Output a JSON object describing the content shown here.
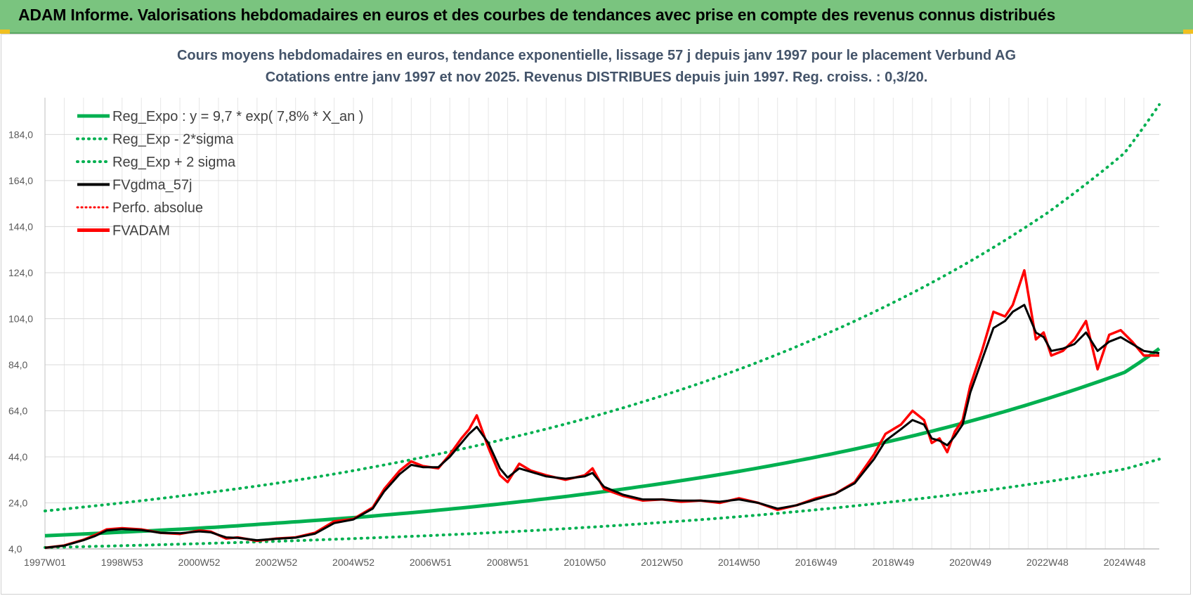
{
  "header": {
    "banner": "ADAM Informe. Valorisations hebdomadaires en euros et des courbes de tendances avec prise en compte des revenus connus distribués"
  },
  "colors": {
    "banner_bg": "#7ac47f",
    "reg_expo": "#00b050",
    "fvgdma": "#000000",
    "fvadam": "#ff0000",
    "perfo": "#ff0000"
  },
  "chart_data": {
    "type": "line",
    "title_lines": [
      "Cours moyens hebdomadaires en euros, tendance exponentielle, lissage 57 j depuis janv 1997  pour le placement Verbund AG",
      "Cotations entre janv 1997 et nov 2025. Revenus DISTRIBUES depuis juin 1997. Reg.  croiss. : 0,3/20."
    ],
    "xlabel": "",
    "ylabel": "",
    "x_range_years": [
      1997.0,
      2025.9
    ],
    "ylim": [
      4,
      200
    ],
    "y_ticks": [
      "4,0",
      "24,0",
      "44,0",
      "64,0",
      "84,0",
      "104,0",
      "124,0",
      "144,0",
      "164,0",
      "184,0"
    ],
    "y_tick_values": [
      4,
      24,
      44,
      64,
      84,
      104,
      124,
      144,
      164,
      184
    ],
    "x_ticks": [
      {
        "label": "1997W01",
        "year": 1997.0
      },
      {
        "label": "1998W53",
        "year": 1999.0
      },
      {
        "label": "2000W52",
        "year": 2001.0
      },
      {
        "label": "2002W52",
        "year": 2003.0
      },
      {
        "label": "2004W52",
        "year": 2005.0
      },
      {
        "label": "2006W51",
        "year": 2007.0
      },
      {
        "label": "2008W51",
        "year": 2009.0
      },
      {
        "label": "2010W50",
        "year": 2011.0
      },
      {
        "label": "2012W50",
        "year": 2013.0
      },
      {
        "label": "2014W50",
        "year": 2015.0
      },
      {
        "label": "2016W49",
        "year": 2017.0
      },
      {
        "label": "2018W49",
        "year": 2019.0
      },
      {
        "label": "2020W49",
        "year": 2021.0
      },
      {
        "label": "2022W48",
        "year": 2023.0
      },
      {
        "label": "2024W48",
        "year": 2025.0
      }
    ],
    "legend": [
      {
        "label": "Reg_Expo : y = 9,7 * exp( 7,8% *  X_an )",
        "style": "solid-green"
      },
      {
        "label": "Reg_Exp - 2*sigma",
        "style": "dotted-green"
      },
      {
        "label": "Reg_Exp + 2 sigma",
        "style": "dotted-green"
      },
      {
        "label": "FVgdma_57j",
        "style": "solid-black"
      },
      {
        "label": "Perfo. absolue",
        "style": "dotted-red"
      },
      {
        "label": "FVADAM",
        "style": "solid-red"
      }
    ],
    "series": [
      {
        "name": "Reg_Expo",
        "x": [
          1997.0,
          1999.0,
          2001.0,
          2003.0,
          2005.0,
          2007.0,
          2009.0,
          2011.0,
          2013.0,
          2015.0,
          2017.0,
          2019.0,
          2021.0,
          2023.0,
          2025.0,
          2025.9
        ],
        "y": [
          9.7,
          11.3,
          13.0,
          15.2,
          17.6,
          20.5,
          23.9,
          27.8,
          32.4,
          37.7,
          43.9,
          51.1,
          59.5,
          69.3,
          80.7,
          91.0
        ]
      },
      {
        "name": "Reg_Exp + 2 sigma",
        "x": [
          1997.0,
          1999.0,
          2001.0,
          2003.0,
          2005.0,
          2007.0,
          2009.0,
          2011.0,
          2013.0,
          2015.0,
          2017.0,
          2019.0,
          2021.0,
          2023.0,
          2025.0,
          2025.9
        ],
        "y": [
          20.5,
          24.0,
          28.0,
          32.5,
          38.0,
          44.5,
          52.0,
          60.5,
          70.5,
          82.0,
          95.5,
          111.0,
          129.0,
          150.0,
          176.0,
          197.0
        ]
      },
      {
        "name": "Reg_Exp - 2*sigma",
        "x": [
          1997.0,
          1999.0,
          2001.0,
          2003.0,
          2005.0,
          2007.0,
          2009.0,
          2011.0,
          2013.0,
          2015.0,
          2017.0,
          2019.0,
          2021.0,
          2023.0,
          2025.0,
          2025.9
        ],
        "y": [
          4.6,
          5.4,
          6.3,
          7.3,
          8.5,
          9.8,
          11.4,
          13.3,
          15.5,
          18.0,
          21.0,
          24.5,
          28.5,
          33.2,
          38.7,
          43.0
        ]
      },
      {
        "name": "FVADAM",
        "x": [
          1997.0,
          1997.5,
          1998.0,
          1998.3,
          1998.6,
          1999.0,
          1999.5,
          2000.0,
          2000.5,
          2001.0,
          2001.3,
          2001.7,
          2002.0,
          2002.5,
          2003.0,
          2003.5,
          2004.0,
          2004.5,
          2005.0,
          2005.5,
          2005.8,
          2006.2,
          2006.5,
          2006.8,
          2007.2,
          2007.5,
          2007.8,
          2008.0,
          2008.2,
          2008.5,
          2008.8,
          2009.0,
          2009.3,
          2009.6,
          2010.0,
          2010.5,
          2011.0,
          2011.2,
          2011.5,
          2012.0,
          2012.5,
          2013.0,
          2013.5,
          2014.0,
          2014.5,
          2015.0,
          2015.5,
          2016.0,
          2016.5,
          2017.0,
          2017.5,
          2018.0,
          2018.5,
          2018.8,
          2019.2,
          2019.5,
          2019.8,
          2020.0,
          2020.2,
          2020.4,
          2020.6,
          2020.8,
          2021.0,
          2021.3,
          2021.6,
          2021.9,
          2022.1,
          2022.4,
          2022.7,
          2022.9,
          2023.1,
          2023.4,
          2023.7,
          2024.0,
          2024.3,
          2024.6,
          2024.9,
          2025.2,
          2025.5,
          2025.9
        ],
        "y": [
          4.5,
          5.5,
          8.0,
          10.0,
          12.5,
          13.0,
          12.5,
          11.0,
          10.5,
          12.0,
          11.5,
          8.5,
          9.0,
          7.5,
          8.5,
          9.0,
          11.0,
          16.0,
          17.0,
          22.0,
          30.0,
          38.0,
          42.0,
          40.0,
          39.0,
          45.0,
          52.0,
          56.0,
          62.0,
          48.0,
          36.0,
          33.0,
          41.0,
          38.0,
          36.0,
          34.0,
          36.0,
          39.0,
          30.0,
          27.0,
          25.0,
          25.5,
          24.5,
          25.0,
          24.0,
          26.0,
          24.0,
          21.0,
          23.0,
          26.0,
          28.0,
          33.0,
          45.0,
          54.0,
          58.0,
          64.0,
          60.0,
          50.0,
          52.0,
          46.0,
          55.0,
          60.0,
          75.0,
          90.0,
          107.0,
          105.0,
          110.0,
          125.0,
          95.0,
          98.0,
          88.0,
          90.0,
          95.0,
          103.0,
          82.0,
          97.0,
          99.0,
          94.0,
          88.0,
          88.0
        ]
      },
      {
        "name": "FVgdma_57j",
        "x": [
          1997.0,
          1997.5,
          1998.0,
          1998.3,
          1998.6,
          1999.0,
          1999.5,
          2000.0,
          2000.5,
          2001.0,
          2001.3,
          2001.7,
          2002.0,
          2002.5,
          2003.0,
          2003.5,
          2004.0,
          2004.5,
          2005.0,
          2005.5,
          2005.8,
          2006.2,
          2006.5,
          2006.8,
          2007.2,
          2007.5,
          2007.8,
          2008.0,
          2008.2,
          2008.5,
          2008.8,
          2009.0,
          2009.3,
          2009.6,
          2010.0,
          2010.5,
          2011.0,
          2011.2,
          2011.5,
          2012.0,
          2012.5,
          2013.0,
          2013.5,
          2014.0,
          2014.5,
          2015.0,
          2015.5,
          2016.0,
          2016.5,
          2017.0,
          2017.5,
          2018.0,
          2018.5,
          2018.8,
          2019.2,
          2019.5,
          2019.8,
          2020.0,
          2020.2,
          2020.4,
          2020.6,
          2020.8,
          2021.0,
          2021.3,
          2021.6,
          2021.9,
          2022.1,
          2022.4,
          2022.7,
          2022.9,
          2023.1,
          2023.4,
          2023.7,
          2024.0,
          2024.3,
          2024.6,
          2024.9,
          2025.2,
          2025.5,
          2025.9
        ],
        "y": [
          4.5,
          5.4,
          7.8,
          9.6,
          12.0,
          12.6,
          12.2,
          11.0,
          10.8,
          11.6,
          11.2,
          9.0,
          8.8,
          7.8,
          8.4,
          8.9,
          10.6,
          15.2,
          16.8,
          21.5,
          29.0,
          36.5,
          40.5,
          39.5,
          39.5,
          44.0,
          50.0,
          54.0,
          57.0,
          50.0,
          39.0,
          35.0,
          39.0,
          37.5,
          35.5,
          34.5,
          35.5,
          37.0,
          31.0,
          27.5,
          25.5,
          25.5,
          25.0,
          25.0,
          24.5,
          25.5,
          24.0,
          21.5,
          23.0,
          25.5,
          28.0,
          32.5,
          43.0,
          51.0,
          56.0,
          60.0,
          58.0,
          52.0,
          51.0,
          49.0,
          53.0,
          58.0,
          72.0,
          86.0,
          100.0,
          103.0,
          107.0,
          110.0,
          98.0,
          96.0,
          90.0,
          91.0,
          93.0,
          98.0,
          90.0,
          94.0,
          96.0,
          93.0,
          90.0,
          89.0
        ]
      }
    ]
  }
}
